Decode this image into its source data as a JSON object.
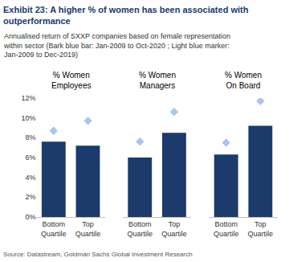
{
  "chart_data": {
    "type": "bar",
    "title": "Exhibit 23: A higher % of women has been associated with outperformance",
    "subtitle": "Annualised return of SXXP companies based on female representation within sector (Bark blue bar: Jan-2009 to Oct-2020 ; Light blue marker: Jan-2009 to Dec-2019)",
    "source": "Source: Datastream, Goldman Sachs Global Investment Research",
    "categories": [
      "Bottom Quartile",
      "Top Quartile"
    ],
    "ylim": [
      0,
      12
    ],
    "yticks": [
      {
        "value": 0,
        "label": "0%"
      },
      {
        "value": 2,
        "label": "2%"
      },
      {
        "value": 4,
        "label": "4%"
      },
      {
        "value": 6,
        "label": "6%"
      },
      {
        "value": 8,
        "label": "8%"
      },
      {
        "value": 10,
        "label": "10%"
      },
      {
        "value": 12,
        "label": "12%"
      }
    ],
    "grid": false,
    "panels": [
      {
        "title": "% Women Employees",
        "series": [
          {
            "type": "bar",
            "color": "#1c3a6b",
            "values": [
              7.6,
              7.2
            ]
          },
          {
            "type": "scatter",
            "marker": "diamond",
            "color": "#a9c6ea",
            "values": [
              8.7,
              9.7
            ]
          }
        ]
      },
      {
        "title": "% Women Managers",
        "series": [
          {
            "type": "bar",
            "color": "#1c3a6b",
            "values": [
              6.0,
              8.5
            ]
          },
          {
            "type": "scatter",
            "marker": "diamond",
            "color": "#a9c6ea",
            "values": [
              7.6,
              10.6
            ]
          }
        ]
      },
      {
        "title": "% Women On Board",
        "series": [
          {
            "type": "bar",
            "color": "#1c3a6b",
            "values": [
              6.3,
              9.2
            ]
          },
          {
            "type": "scatter",
            "marker": "diamond",
            "color": "#a9c6ea",
            "values": [
              7.5,
              11.7
            ]
          }
        ]
      }
    ]
  }
}
